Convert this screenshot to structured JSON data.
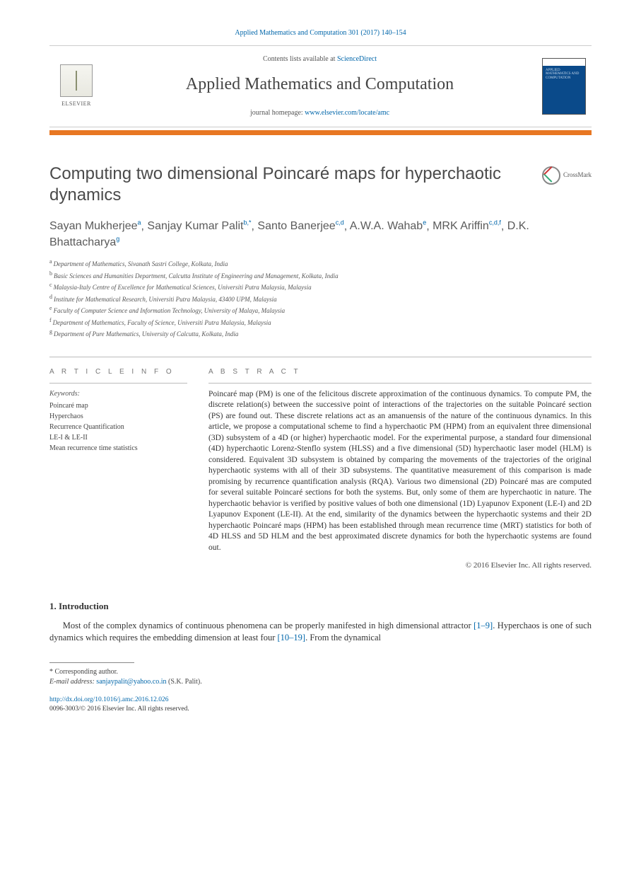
{
  "header": {
    "citation": "Applied Mathematics and Computation 301 (2017) 140–154",
    "contents_prefix": "Contents lists available at ",
    "sciencedirect": "ScienceDirect",
    "journal_name": "Applied Mathematics and Computation",
    "homepage_prefix": "journal homepage: ",
    "homepage_url": "www.elsevier.com/locate/amc",
    "elsevier_label": "ELSEVIER",
    "cover_text": "APPLIED MATHEMATICS AND COMPUTATION"
  },
  "colors": {
    "orange_bar": "#e87722",
    "link": "#0066aa",
    "cover_bg": "#0a4a8a"
  },
  "crossmark_label": "CrossMark",
  "title": "Computing two dimensional Poincaré maps for hyperchaotic dynamics",
  "authors": [
    {
      "name": "Sayan Mukherjee",
      "sup": "a"
    },
    {
      "name": "Sanjay Kumar Palit",
      "sup": "b,*"
    },
    {
      "name": "Santo Banerjee",
      "sup": "c,d"
    },
    {
      "name": "A.W.A. Wahab",
      "sup": "e"
    },
    {
      "name": "MRK Ariffin",
      "sup": "c,d,f"
    },
    {
      "name": "D.K. Bhattacharya",
      "sup": "g"
    }
  ],
  "affiliations": [
    {
      "key": "a",
      "text": "Department of Mathematics, Sivanath Sastri College, Kolkata, India"
    },
    {
      "key": "b",
      "text": "Basic Sciences and Humanities Department, Calcutta Institute of Engineering and Management, Kolkata, India"
    },
    {
      "key": "c",
      "text": "Malaysia-Italy Centre of Excellence for Mathematical Sciences, Universiti Putra Malaysia, Malaysia"
    },
    {
      "key": "d",
      "text": "Institute for Mathematical Research, Universiti Putra Malaysia, 43400 UPM, Malaysia"
    },
    {
      "key": "e",
      "text": "Faculty of Computer Science and Information Technology, University of Malaya, Malaysia"
    },
    {
      "key": "f",
      "text": "Department of Mathematics, Faculty of Science, Universiti Putra Malaysia, Malaysia"
    },
    {
      "key": "g",
      "text": "Department of Pure Mathematics, University of Calcutta, Kolkata, India"
    }
  ],
  "info_heading": "A R T I C L E   I N F O",
  "abstract_heading": "A B S T R A C T",
  "keywords_label": "Keywords:",
  "keywords": [
    "Poincaré map",
    "Hyperchaos",
    "Recurrence Quantification",
    "LE-I & LE-II",
    "Mean recurrence time statistics"
  ],
  "abstract": "Poincaré map (PM) is one of the felicitous discrete approximation of the continuous dynamics. To compute PM, the discrete relation(s) between the successive point of interactions of the trajectories on the suitable Poincaré section (PS) are found out. These discrete relations act as an amanuensis of the nature of the continuous dynamics. In this article, we propose a computational scheme to find a hyperchaotic PM (HPM) from an equivalent three dimensional (3D) subsystem of a 4D (or higher) hyperchaotic model. For the experimental purpose, a standard four dimensional (4D) hyperchaotic Lorenz-Stenflo system (HLSS) and a five dimensional (5D) hyperchaotic laser model (HLM) is considered. Equivalent 3D subsystem is obtained by comparing the movements of the trajectories of the original hyperchaotic systems with all of their 3D subsystems. The quantitative measurement of this comparison is made promising by recurrence quantification analysis (RQA). Various two dimensional (2D) Poincaré mas are computed for several suitable Poincaré sections for both the systems. But, only some of them are hyperchaotic in nature. The hyperchaotic behavior is verified by positive values of both one dimensional (1D) Lyapunov Exponent (LE-I) and 2D Lyapunov Exponent (LE-II). At the end, similarity of the dynamics between the hyperchaotic systems and their 2D hyperchaotic Poincaré maps (HPM) has been established through mean recurrence time (MRT) statistics for both of 4D HLSS and 5D HLM and the best approximated discrete dynamics for both the hyperchaotic systems are found out.",
  "copyright": "© 2016 Elsevier Inc. All rights reserved.",
  "section1_heading": "1. Introduction",
  "body_p1_a": "Most of the complex dynamics of continuous phenomena can be properly manifested in high dimensional attractor ",
  "body_p1_cite1": "[1–9]",
  "body_p1_b": ". Hyperchaos is one of such dynamics which requires the embedding dimension at least four ",
  "body_p1_cite2": "[10–19]",
  "body_p1_c": ". From the dynamical",
  "footnote_star": "*  Corresponding author.",
  "footnote_email_label": "E-mail address: ",
  "footnote_email": "sanjaypalit@yahoo.co.in",
  "footnote_email_suffix": " (S.K. Palit).",
  "doi": "http://dx.doi.org/10.1016/j.amc.2016.12.026",
  "issn_line": "0096-3003/© 2016 Elsevier Inc. All rights reserved."
}
